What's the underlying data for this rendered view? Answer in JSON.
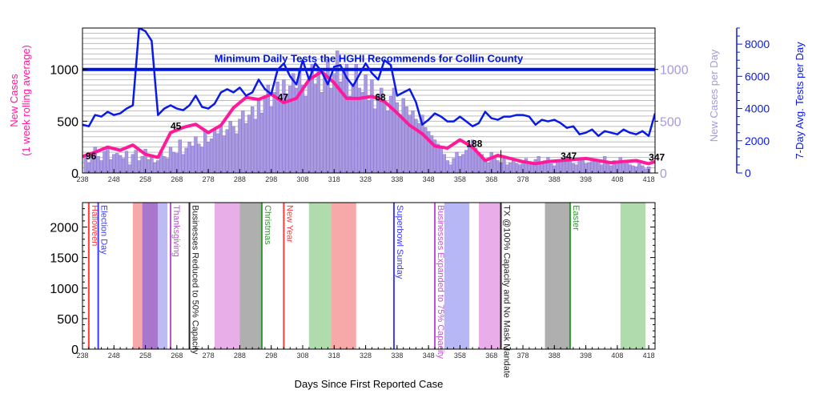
{
  "colors": {
    "cases_bar_fill": "#a999e0",
    "cases_bar_stroke": "#7d68cc",
    "rolling_avg": "#ff1a9a",
    "tests_line": "#0a1ae6",
    "grid": "#bdbdbd",
    "recommend_line": "#0014e0"
  },
  "chart_data": [
    {
      "id": "top",
      "type": "bar",
      "xlim": [
        238,
        420
      ],
      "x_ticks": [
        "238",
        "248",
        "258",
        "268",
        "278",
        "288",
        "298",
        "308",
        "318",
        "328",
        "338",
        "348",
        "358",
        "368",
        "378",
        "388",
        "398",
        "408",
        "418"
      ],
      "ylim_left": [
        0,
        1400
      ],
      "y_ticks_left": [
        "0",
        "500",
        "1000"
      ],
      "ylabel_left": [
        "New Cases",
        "(1 week rolling average)"
      ],
      "ylabel_right_inner": "New Cases per Day",
      "y_ticks_right_inner": [
        "0",
        "500",
        "1000"
      ],
      "ylabel_right_outer": "7-Day Avg. Tests per Day",
      "ylim_right_outer": [
        0,
        9000
      ],
      "y_ticks_right_outer": [
        "0",
        "2000",
        "4000",
        "6000",
        "8000"
      ],
      "recommendation": {
        "value": 1000,
        "label": "Minimum Daily Tests the HGHI Recommends for Collin County"
      },
      "annotations": [
        {
          "x": 239,
          "y": 130,
          "text": "96"
        },
        {
          "x": 266,
          "y": 420,
          "text": "45"
        },
        {
          "x": 300,
          "y": 700,
          "text": "47"
        },
        {
          "x": 331,
          "y": 700,
          "text": "68"
        },
        {
          "x": 360,
          "y": 250,
          "text": "188"
        },
        {
          "x": 390,
          "y": 130,
          "text": "347"
        },
        {
          "x": 418,
          "y": 120,
          "text": "347"
        }
      ],
      "series": [
        {
          "kind": "bar",
          "x_start": 239,
          "values": [
            170,
            100,
            180,
            250,
            160,
            120,
            210,
            260,
            130,
            180,
            190,
            170,
            140,
            210,
            80,
            180,
            220,
            120,
            160,
            230,
            130,
            150,
            100,
            120,
            220,
            160,
            140,
            250,
            200,
            190,
            320,
            180,
            240,
            300,
            260,
            350,
            280,
            250,
            400,
            300,
            330,
            420,
            380,
            450,
            360,
            420,
            500,
            450,
            380,
            520,
            600,
            480,
            560,
            640,
            520,
            700,
            580,
            720,
            850,
            640,
            780,
            880,
            700,
            900,
            760,
            840,
            960,
            820,
            1000,
            850,
            740,
            900,
            1050,
            860,
            1000,
            780,
            920,
            1100,
            820,
            960,
            1180,
            880,
            1000,
            1050,
            740,
            860,
            1050,
            820,
            780,
            950,
            700,
            900,
            620,
            760,
            820,
            700,
            600,
            740,
            820,
            680,
            560,
            720,
            640,
            560,
            600,
            520,
            480,
            560,
            440,
            400,
            360,
            320,
            280,
            240,
            180,
            120,
            80,
            140,
            200,
            160,
            180,
            220,
            260,
            320,
            240,
            200,
            180,
            130,
            100,
            200,
            160,
            120,
            100,
            140,
            80,
            100,
            120,
            90,
            80,
            110,
            140,
            100,
            90,
            130,
            160,
            110,
            120,
            150,
            90,
            70,
            100,
            130,
            110,
            160,
            120,
            90,
            80,
            130,
            140,
            90,
            100,
            110,
            120,
            110,
            80,
            160,
            90,
            70,
            120,
            100,
            150,
            90,
            110,
            80,
            70,
            60,
            90,
            70,
            40,
            60
          ],
          "values_note": "per-day counts, read from the chart"
        },
        {
          "kind": "line",
          "name": "1 week rolling average",
          "x": [
            238,
            242,
            246,
            250,
            254,
            258,
            262,
            266,
            270,
            274,
            278,
            282,
            286,
            290,
            294,
            298,
            302,
            306,
            310,
            314,
            318,
            322,
            326,
            330,
            334,
            338,
            342,
            346,
            350,
            354,
            358,
            362,
            366,
            370,
            374,
            378,
            382,
            386,
            390,
            394,
            398,
            402,
            406,
            410,
            414,
            418,
            420
          ],
          "y": [
            160,
            200,
            250,
            220,
            270,
            180,
            150,
            390,
            440,
            470,
            390,
            460,
            630,
            730,
            710,
            760,
            680,
            720,
            900,
            980,
            870,
            720,
            720,
            740,
            690,
            580,
            460,
            380,
            260,
            240,
            320,
            250,
            120,
            170,
            140,
            110,
            90,
            110,
            120,
            130,
            140,
            120,
            100,
            110,
            120,
            90,
            110
          ]
        },
        {
          "kind": "line",
          "name": "7-Day Avg. Tests per Day",
          "axis": "right_outer",
          "x": [
            238,
            240,
            242,
            244,
            246,
            248,
            250,
            252,
            254,
            256,
            258,
            260,
            262,
            264,
            266,
            268,
            270,
            272,
            274,
            276,
            278,
            280,
            282,
            284,
            286,
            288,
            290,
            292,
            294,
            296,
            298,
            300,
            302,
            304,
            306,
            308,
            310,
            312,
            314,
            316,
            318,
            320,
            322,
            324,
            326,
            328,
            330,
            332,
            334,
            336,
            338,
            340,
            342,
            344,
            346,
            348,
            350,
            352,
            354,
            356,
            358,
            360,
            362,
            364,
            366,
            368,
            370,
            372,
            374,
            376,
            378,
            380,
            382,
            384,
            386,
            388,
            390,
            392,
            394,
            396,
            398,
            400,
            402,
            404,
            406,
            408,
            410,
            412,
            414,
            416,
            418,
            420
          ],
          "y": [
            3000,
            2900,
            3600,
            3500,
            3800,
            3600,
            3700,
            4000,
            4200,
            9000,
            8800,
            8200,
            3600,
            4000,
            4200,
            4000,
            3900,
            4200,
            4800,
            4100,
            4000,
            4300,
            5000,
            5200,
            5000,
            5300,
            4800,
            5000,
            5800,
            5200,
            4900,
            6400,
            6800,
            6000,
            5500,
            7000,
            5800,
            6800,
            6300,
            5500,
            6600,
            6700,
            5900,
            5400,
            6100,
            6800,
            6200,
            5800,
            7000,
            6700,
            4800,
            5000,
            5200,
            4400,
            3000,
            3300,
            3700,
            3500,
            3200,
            3200,
            3500,
            3200,
            2900,
            3100,
            3800,
            3400,
            3300,
            3500,
            3500,
            3600,
            3600,
            3500,
            3000,
            3300,
            3200,
            3300,
            3100,
            2800,
            2900,
            2400,
            2500,
            2700,
            2300,
            2600,
            2500,
            2400,
            2700,
            2500,
            2400,
            2600,
            2300,
            3700
          ]
        }
      ]
    },
    {
      "id": "bottom",
      "type": "timeline",
      "xlabel": "Days Since First Reported Case",
      "xlim": [
        238,
        420
      ],
      "ylim": [
        0,
        2400
      ],
      "x_ticks": [
        "238",
        "248",
        "258",
        "268",
        "278",
        "288",
        "298",
        "308",
        "318",
        "328",
        "338",
        "348",
        "358",
        "368",
        "378",
        "388",
        "398",
        "408",
        "418"
      ],
      "y_ticks": [
        "0",
        "500",
        "1000",
        "1500",
        "2000"
      ],
      "bands": [
        {
          "x0": 254,
          "x1": 257,
          "color": "#f7a4a4"
        },
        {
          "x0": 257,
          "x1": 262,
          "color": "#a36fc8"
        },
        {
          "x0": 262,
          "x1": 265,
          "color": "#b8b8f2"
        },
        {
          "x0": 280,
          "x1": 288,
          "color": "#e6aae6"
        },
        {
          "x0": 288,
          "x1": 295,
          "color": "#ababab"
        },
        {
          "x0": 310,
          "x1": 317,
          "color": "#acd9a8"
        },
        {
          "x0": 317,
          "x1": 325,
          "color": "#f7a4a4"
        },
        {
          "x0": 353,
          "x1": 361,
          "color": "#b3b3f5"
        },
        {
          "x0": 364,
          "x1": 371,
          "color": "#e8aae8"
        },
        {
          "x0": 385,
          "x1": 393,
          "color": "#ababab"
        },
        {
          "x0": 409,
          "x1": 417,
          "color": "#acd9a8"
        }
      ],
      "events": [
        {
          "x": 240,
          "label": "Halloween",
          "color": "#ff3b3b"
        },
        {
          "x": 243,
          "label": "Election Day",
          "color": "#3b3bff"
        },
        {
          "x": 266,
          "label": "Thanksgiving",
          "color": "#c050d6"
        },
        {
          "x": 272,
          "label": "Businesses Reduced to 50% Capacity",
          "color": "#222222"
        },
        {
          "x": 295,
          "label": "Christmas",
          "color": "#2e9a2e"
        },
        {
          "x": 302,
          "label": "New Year",
          "color": "#ff3b3b"
        },
        {
          "x": 337,
          "label": "Superbowl Sunday",
          "color": "#3b3bff"
        },
        {
          "x": 350,
          "label": "Businesses Expanded to 75% Capacity",
          "color": "#c050d6"
        },
        {
          "x": 371,
          "label": "TX @100% Capacity and No Mask Mandate",
          "color": "#222222"
        },
        {
          "x": 393,
          "label": "Easter",
          "color": "#2e9a2e"
        }
      ]
    }
  ]
}
